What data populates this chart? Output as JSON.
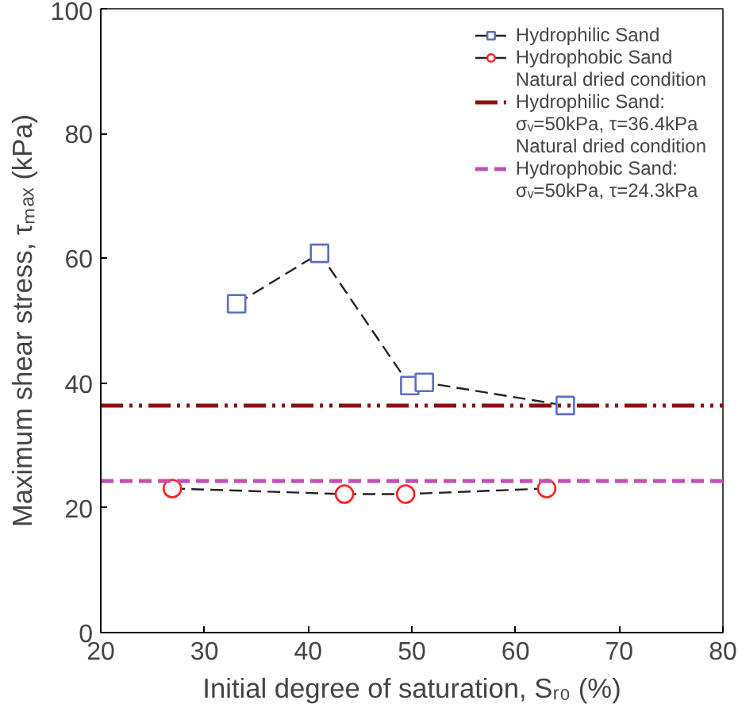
{
  "chart_data": {
    "type": "line",
    "xlabel": "Initial degree of saturation, Sᵣ₀ (%)",
    "ylabel": "Maximum shear stress, τₘₐₓ (kPa)",
    "series": [
      {
        "name": "Hydrophilic Sand",
        "color": "#5a6fc4",
        "marker": "square",
        "line_style": "dashed",
        "x": [
          33.1,
          41.1,
          49.8,
          51.2,
          64.8
        ],
        "values": [
          52.7,
          60.8,
          39.6,
          40.1,
          36.4
        ]
      },
      {
        "name": "Hydrophobic Sand",
        "color": "#ff2020",
        "marker": "circle",
        "line_style": "dashed",
        "x": [
          26.9,
          43.5,
          49.4,
          63.0
        ],
        "values": [
          23.1,
          22.2,
          22.2,
          23.1
        ]
      }
    ],
    "ref_lines": [
      {
        "axis": "y",
        "value": 36.4,
        "label": "Natural dried condition\nHydrophilic Sand:\nσᵥ=50kPa, τ=36.4kPa",
        "color": "#8b1010",
        "line_style": "dashdotdot"
      },
      {
        "axis": "y",
        "value": 24.3,
        "label": "Natural dried condition\nHydrophobic Sand:\nσᵥ=50kPa, τ=24.3kPa",
        "color": "#c050b0",
        "line_style": "dashed"
      }
    ],
    "xlim": [
      20,
      80
    ],
    "ylim": [
      0,
      100
    ],
    "xticks": [
      20,
      30,
      40,
      50,
      60,
      70,
      80
    ],
    "yticks": [
      0,
      20,
      40,
      60,
      80,
      100
    ],
    "grid": false,
    "legend": "top right"
  }
}
